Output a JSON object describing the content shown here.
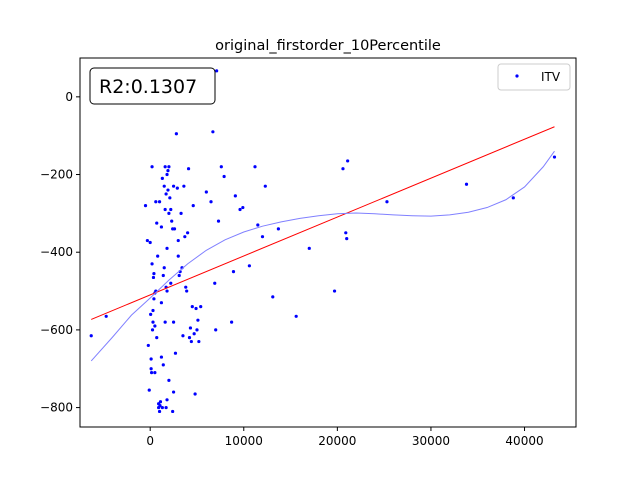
{
  "chart_data": {
    "type": "scatter",
    "title": "original_firstorder_10Percentile",
    "xlabel": "",
    "ylabel": "",
    "xlim": [
      -7500,
      45500
    ],
    "ylim": [
      -850,
      100
    ],
    "xticks": [
      0,
      10000,
      20000,
      30000,
      40000
    ],
    "xtick_labels": [
      "0",
      "10000",
      "20000",
      "30000",
      "40000"
    ],
    "yticks": [
      0,
      -200,
      -400,
      -600,
      -800
    ],
    "ytick_labels": [
      "0",
      "−200",
      "−400",
      "−600",
      "−800"
    ],
    "annotation": "R2:0.1307",
    "legend": {
      "position": "top-right",
      "entries": [
        {
          "label": "ITV",
          "color": "#0000ff"
        }
      ]
    },
    "grid": false,
    "series": [
      {
        "name": "ITV",
        "kind": "scatter",
        "color": "#0000ff",
        "points": [
          [
            -6300,
            -615
          ],
          [
            -4700,
            -565
          ],
          [
            -500,
            -280
          ],
          [
            -300,
            -370
          ],
          [
            -200,
            -640
          ],
          [
            -100,
            -755
          ],
          [
            0,
            -375
          ],
          [
            50,
            -560
          ],
          [
            100,
            -675
          ],
          [
            100,
            -700
          ],
          [
            150,
            -710
          ],
          [
            200,
            -180
          ],
          [
            200,
            -430
          ],
          [
            250,
            -600
          ],
          [
            300,
            -550
          ],
          [
            300,
            -580
          ],
          [
            350,
            -465
          ],
          [
            400,
            -455
          ],
          [
            400,
            -520
          ],
          [
            500,
            -505
          ],
          [
            500,
            -590
          ],
          [
            500,
            -710
          ],
          [
            600,
            -270
          ],
          [
            600,
            -500
          ],
          [
            700,
            -325
          ],
          [
            700,
            -620
          ],
          [
            800,
            -410
          ],
          [
            900,
            -790
          ],
          [
            900,
            -800
          ],
          [
            1000,
            -270
          ],
          [
            1000,
            -810
          ],
          [
            1050,
            -795
          ],
          [
            1100,
            -785
          ],
          [
            1200,
            -335
          ],
          [
            1200,
            -530
          ],
          [
            1200,
            -670
          ],
          [
            1300,
            -210
          ],
          [
            1300,
            -800
          ],
          [
            1400,
            -460
          ],
          [
            1400,
            -690
          ],
          [
            1500,
            -230
          ],
          [
            1500,
            -440
          ],
          [
            1600,
            -180
          ],
          [
            1600,
            -290
          ],
          [
            1600,
            -580
          ],
          [
            1700,
            -250
          ],
          [
            1700,
            -490
          ],
          [
            1700,
            -800
          ],
          [
            1800,
            -200
          ],
          [
            1800,
            -390
          ],
          [
            1800,
            -500
          ],
          [
            1800,
            -780
          ],
          [
            1900,
            -190
          ],
          [
            1900,
            -240
          ],
          [
            2000,
            -180
          ],
          [
            2000,
            -300
          ],
          [
            2000,
            -730
          ],
          [
            2100,
            -260
          ],
          [
            2200,
            -290
          ],
          [
            2200,
            -480
          ],
          [
            2300,
            -320
          ],
          [
            2400,
            -340
          ],
          [
            2400,
            -810
          ],
          [
            2500,
            -230
          ],
          [
            2500,
            -580
          ],
          [
            2500,
            -760
          ],
          [
            2600,
            -340
          ],
          [
            2700,
            -660
          ],
          [
            2800,
            -95
          ],
          [
            2900,
            -235
          ],
          [
            3000,
            -370
          ],
          [
            3000,
            -410
          ],
          [
            3100,
            -460
          ],
          [
            3200,
            -450
          ],
          [
            3300,
            -300
          ],
          [
            3400,
            -440
          ],
          [
            3500,
            -615
          ],
          [
            3600,
            -230
          ],
          [
            3700,
            -360
          ],
          [
            3800,
            -490
          ],
          [
            3900,
            -500
          ],
          [
            4000,
            -350
          ],
          [
            4100,
            -185
          ],
          [
            4200,
            -620
          ],
          [
            4300,
            -595
          ],
          [
            4400,
            -630
          ],
          [
            4500,
            -540
          ],
          [
            4600,
            -280
          ],
          [
            4700,
            -610
          ],
          [
            4800,
            -765
          ],
          [
            4900,
            -545
          ],
          [
            5000,
            -600
          ],
          [
            5100,
            -575
          ],
          [
            5200,
            -630
          ],
          [
            5400,
            -540
          ],
          [
            6000,
            -245
          ],
          [
            6500,
            -270
          ],
          [
            6700,
            -90
          ],
          [
            6900,
            -480
          ],
          [
            7000,
            -600
          ],
          [
            7100,
            67
          ],
          [
            7300,
            -320
          ],
          [
            7600,
            -180
          ],
          [
            7900,
            -205
          ],
          [
            8700,
            -580
          ],
          [
            8900,
            -450
          ],
          [
            9100,
            -255
          ],
          [
            9600,
            -290
          ],
          [
            9900,
            -285
          ],
          [
            10600,
            -435
          ],
          [
            11200,
            -180
          ],
          [
            11500,
            -330
          ],
          [
            12000,
            -360
          ],
          [
            12300,
            -230
          ],
          [
            13100,
            -515
          ],
          [
            13700,
            -340
          ],
          [
            15600,
            -565
          ],
          [
            17000,
            -390
          ],
          [
            19700,
            -500
          ],
          [
            20600,
            -185
          ],
          [
            20900,
            -350
          ],
          [
            21000,
            -365
          ],
          [
            21100,
            -165
          ],
          [
            25300,
            -270
          ],
          [
            33800,
            -225
          ],
          [
            38800,
            -260
          ],
          [
            43200,
            -155
          ]
        ]
      },
      {
        "name": "",
        "kind": "line",
        "color": "#ff0000",
        "points": [
          [
            -6300,
            -573
          ],
          [
            43200,
            -77
          ]
        ]
      },
      {
        "name": "",
        "kind": "curve",
        "color": "#8080ff",
        "points": [
          [
            -6300,
            -680
          ],
          [
            -4000,
            -618
          ],
          [
            -2000,
            -562
          ],
          [
            0,
            -518
          ],
          [
            2000,
            -472
          ],
          [
            4000,
            -430
          ],
          [
            6000,
            -395
          ],
          [
            8000,
            -368
          ],
          [
            10000,
            -348
          ],
          [
            12000,
            -333
          ],
          [
            14000,
            -322
          ],
          [
            16000,
            -313
          ],
          [
            18000,
            -306
          ],
          [
            20000,
            -301
          ],
          [
            22000,
            -299
          ],
          [
            24000,
            -301
          ],
          [
            26000,
            -304
          ],
          [
            28000,
            -306
          ],
          [
            30000,
            -307
          ],
          [
            32000,
            -304
          ],
          [
            34000,
            -297
          ],
          [
            36000,
            -285
          ],
          [
            38000,
            -265
          ],
          [
            40000,
            -232
          ],
          [
            42000,
            -180
          ],
          [
            43200,
            -140
          ]
        ]
      }
    ]
  }
}
